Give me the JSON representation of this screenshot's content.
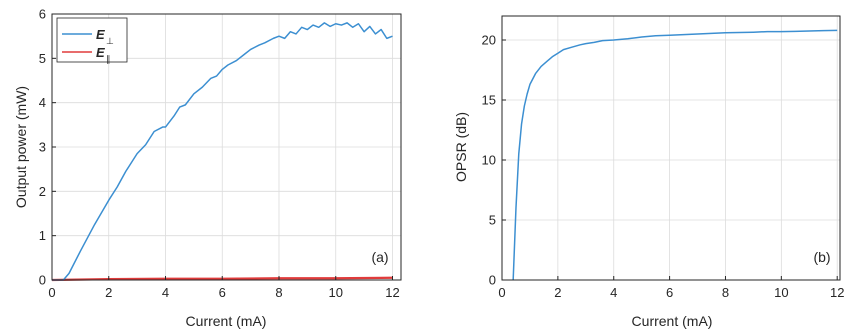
{
  "colors": {
    "blue": "#3c8fd1",
    "red": "#e03b3b",
    "axis": "#262626",
    "grid": "#dcdcdc"
  },
  "chart_data": [
    {
      "type": "line",
      "panel_label": "(a)",
      "xlabel": "Current (mA)",
      "ylabel": "Output power (mW)",
      "xlim": [
        0,
        12.3
      ],
      "ylim": [
        0,
        6
      ],
      "xticks": [
        0,
        2,
        4,
        6,
        8,
        10,
        12
      ],
      "yticks": [
        0,
        1,
        2,
        3,
        4,
        5,
        6
      ],
      "grid": true,
      "legend_position": "top-left",
      "series": [
        {
          "name": "E⊥",
          "legend_symbol": "E",
          "legend_subscript": "⊥",
          "color": "#3c8fd1",
          "x": [
            0,
            0.4,
            0.6,
            1.0,
            1.5,
            2.0,
            2.3,
            2.6,
            3.0,
            3.3,
            3.6,
            3.9,
            4.0,
            4.3,
            4.5,
            4.7,
            5.0,
            5.3,
            5.6,
            5.8,
            6.0,
            6.2,
            6.5,
            6.8,
            7.0,
            7.3,
            7.5,
            7.8,
            8.0,
            8.2,
            8.4,
            8.6,
            8.8,
            9.0,
            9.2,
            9.4,
            9.6,
            9.8,
            10.0,
            10.2,
            10.4,
            10.6,
            10.8,
            11.0,
            11.2,
            11.4,
            11.6,
            11.8,
            12.0
          ],
          "y": [
            0,
            0,
            0.15,
            0.65,
            1.25,
            1.8,
            2.1,
            2.45,
            2.85,
            3.05,
            3.35,
            3.45,
            3.45,
            3.7,
            3.9,
            3.95,
            4.2,
            4.35,
            4.55,
            4.6,
            4.75,
            4.85,
            4.95,
            5.1,
            5.2,
            5.3,
            5.35,
            5.45,
            5.5,
            5.45,
            5.6,
            5.55,
            5.7,
            5.65,
            5.75,
            5.7,
            5.8,
            5.72,
            5.78,
            5.75,
            5.8,
            5.7,
            5.78,
            5.6,
            5.72,
            5.55,
            5.65,
            5.45,
            5.5
          ]
        },
        {
          "name": "E∥",
          "legend_symbol": "E",
          "legend_subscript": "∥",
          "color": "#e03b3b",
          "x": [
            0,
            2,
            4,
            6,
            8,
            10,
            12
          ],
          "y": [
            0,
            0.02,
            0.03,
            0.03,
            0.04,
            0.04,
            0.05
          ]
        }
      ]
    },
    {
      "type": "line",
      "panel_label": "(b)",
      "xlabel": "Current (mA)",
      "ylabel": "OPSR (dB)",
      "xlim": [
        0,
        12.1
      ],
      "ylim": [
        0,
        22
      ],
      "xticks": [
        0,
        2,
        4,
        6,
        8,
        10,
        12
      ],
      "yticks": [
        0,
        5,
        10,
        15,
        20
      ],
      "grid": true,
      "series": [
        {
          "color": "#3c8fd1",
          "x": [
            0.4,
            0.5,
            0.6,
            0.7,
            0.8,
            0.9,
            1.0,
            1.2,
            1.4,
            1.6,
            1.8,
            2.0,
            2.2,
            2.5,
            2.8,
            3.0,
            3.3,
            3.6,
            4.0,
            4.5,
            5.0,
            5.5,
            6.0,
            6.5,
            7.0,
            7.5,
            8.0,
            8.5,
            9.0,
            9.5,
            10.0,
            10.5,
            11.0,
            11.5,
            12.0
          ],
          "y": [
            0,
            6,
            10.5,
            13,
            14.5,
            15.5,
            16.3,
            17.2,
            17.8,
            18.2,
            18.6,
            18.9,
            19.2,
            19.4,
            19.6,
            19.7,
            19.8,
            19.95,
            20.0,
            20.1,
            20.25,
            20.35,
            20.4,
            20.45,
            20.5,
            20.55,
            20.6,
            20.62,
            20.65,
            20.7,
            20.7,
            20.72,
            20.75,
            20.78,
            20.8
          ]
        }
      ]
    }
  ]
}
